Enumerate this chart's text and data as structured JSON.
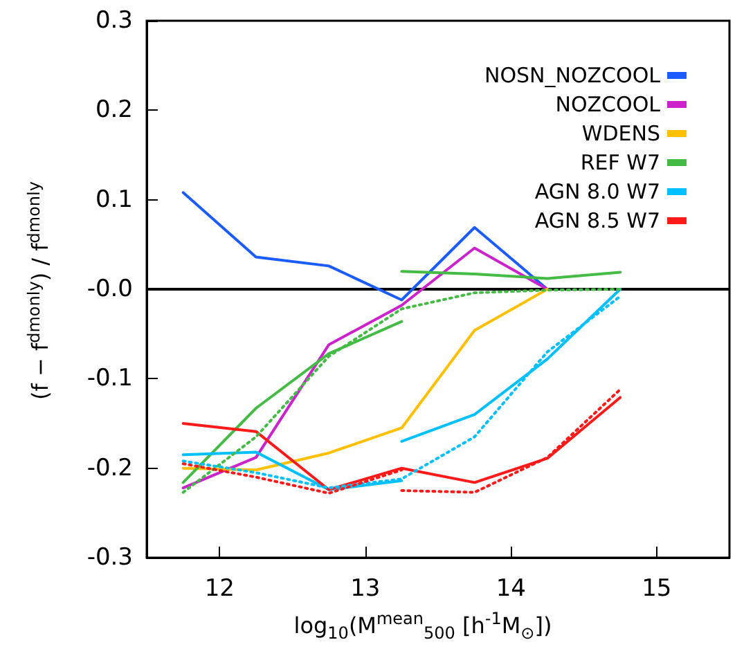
{
  "chart_data": {
    "type": "line",
    "xlabel": "log$_{10}$(M$^{mean}$$_{500}$ [h$^{-1}$M$_{⊙}$])",
    "ylabel": "(f − f$^{dmonly}$) / f$^{dmonly}$",
    "xlim": [
      11.5,
      15.5
    ],
    "xticks": [
      12,
      13,
      14,
      15
    ],
    "ylim": [
      -0.3,
      0.3
    ],
    "yticks": [
      {
        "value": -0.3,
        "label": "-0.3"
      },
      {
        "value": -0.2,
        "label": "-0.2"
      },
      {
        "value": -0.1,
        "label": "-0.1"
      },
      {
        "value": 0,
        "label": "-0.0"
      },
      {
        "value": 0.1,
        "label": "0.1"
      },
      {
        "value": 0.2,
        "label": "0.2"
      },
      {
        "value": 0.3,
        "label": "0.3"
      }
    ],
    "grid": false,
    "legend": "top right",
    "marker": "none",
    "ref_lines": [
      {
        "axis": "y",
        "value": 0,
        "color": "#000000"
      }
    ],
    "series": [
      {
        "name": "NOSN_NOZCOOL",
        "color": "#1a5cff",
        "line_style": "solid",
        "x": [
          11.75,
          12.25,
          12.75,
          13.25,
          13.75,
          14.25
        ],
        "values": [
          0.108,
          0.036,
          0.026,
          -0.012,
          0.069,
          0.0
        ]
      },
      {
        "name": "NOZCOOL",
        "color": "#cc22cc",
        "line_style": "solid",
        "x": [
          11.75,
          12.25,
          12.75,
          13.25,
          13.75,
          14.25
        ],
        "values": [
          -0.222,
          -0.188,
          -0.062,
          -0.018,
          0.046,
          0.0
        ]
      },
      {
        "name": "WDENS",
        "color": "#ffc000",
        "line_style": "solid",
        "x": [
          11.75,
          12.25,
          12.75,
          13.25,
          13.75,
          14.25
        ],
        "values": [
          -0.2,
          -0.202,
          -0.183,
          -0.155,
          -0.046,
          0.0
        ]
      },
      {
        "name": "REF W7",
        "color": "#44bb44",
        "line_style": "solid",
        "x": [
          11.75,
          12.25,
          12.75,
          13.25
        ],
        "values": [
          -0.216,
          -0.133,
          -0.072,
          -0.036
        ]
      },
      {
        "name": "AGN 8.0 W7",
        "color": "#00c0ff",
        "line_style": "solid",
        "x": [
          11.75,
          12.25,
          12.75,
          13.25
        ],
        "values": [
          -0.185,
          -0.182,
          -0.224,
          -0.214
        ]
      },
      {
        "name": "AGN 8.5 W7",
        "color": "#ff1a1a",
        "line_style": "solid",
        "x": [
          11.75,
          12.25,
          12.75,
          13.25,
          13.75,
          14.25,
          14.75
        ],
        "values": [
          -0.15,
          -0.159,
          -0.224,
          -0.2,
          -0.216,
          -0.189,
          -0.121
        ]
      },
      {
        "color": "#44bb44",
        "line_style": "solid",
        "x": [
          13.25,
          13.75,
          14.25,
          14.75
        ],
        "values": [
          0.02,
          0.017,
          0.012,
          0.019
        ]
      },
      {
        "color": "#00c0ff",
        "line_style": "solid",
        "x": [
          13.25,
          13.75,
          14.25,
          14.75
        ],
        "values": [
          -0.17,
          -0.14,
          -0.078,
          0.0
        ]
      },
      {
        "color": "#44bb44",
        "line_style": "dotted",
        "x": [
          11.75,
          12.25,
          12.75,
          13.25,
          13.75,
          14.25,
          14.75
        ],
        "values": [
          -0.227,
          -0.165,
          -0.075,
          -0.022,
          -0.004,
          -0.001,
          0.0
        ]
      },
      {
        "color": "#00c0ff",
        "line_style": "dotted",
        "x": [
          11.75,
          12.25,
          12.75,
          13.25,
          13.75,
          14.25,
          14.75
        ],
        "values": [
          -0.192,
          -0.205,
          -0.222,
          -0.212,
          -0.165,
          -0.07,
          -0.008
        ]
      },
      {
        "color": "#ff1a1a",
        "line_style": "dotted",
        "x": [
          11.75,
          12.25,
          12.75,
          13.25
        ],
        "values": [
          -0.195,
          -0.21,
          -0.228,
          -0.202
        ]
      },
      {
        "color": "#ff1a1a",
        "line_style": "dotted",
        "x": [
          13.25,
          13.75,
          14.25,
          14.75
        ],
        "values": [
          -0.225,
          -0.227,
          -0.188,
          -0.112
        ]
      }
    ]
  }
}
